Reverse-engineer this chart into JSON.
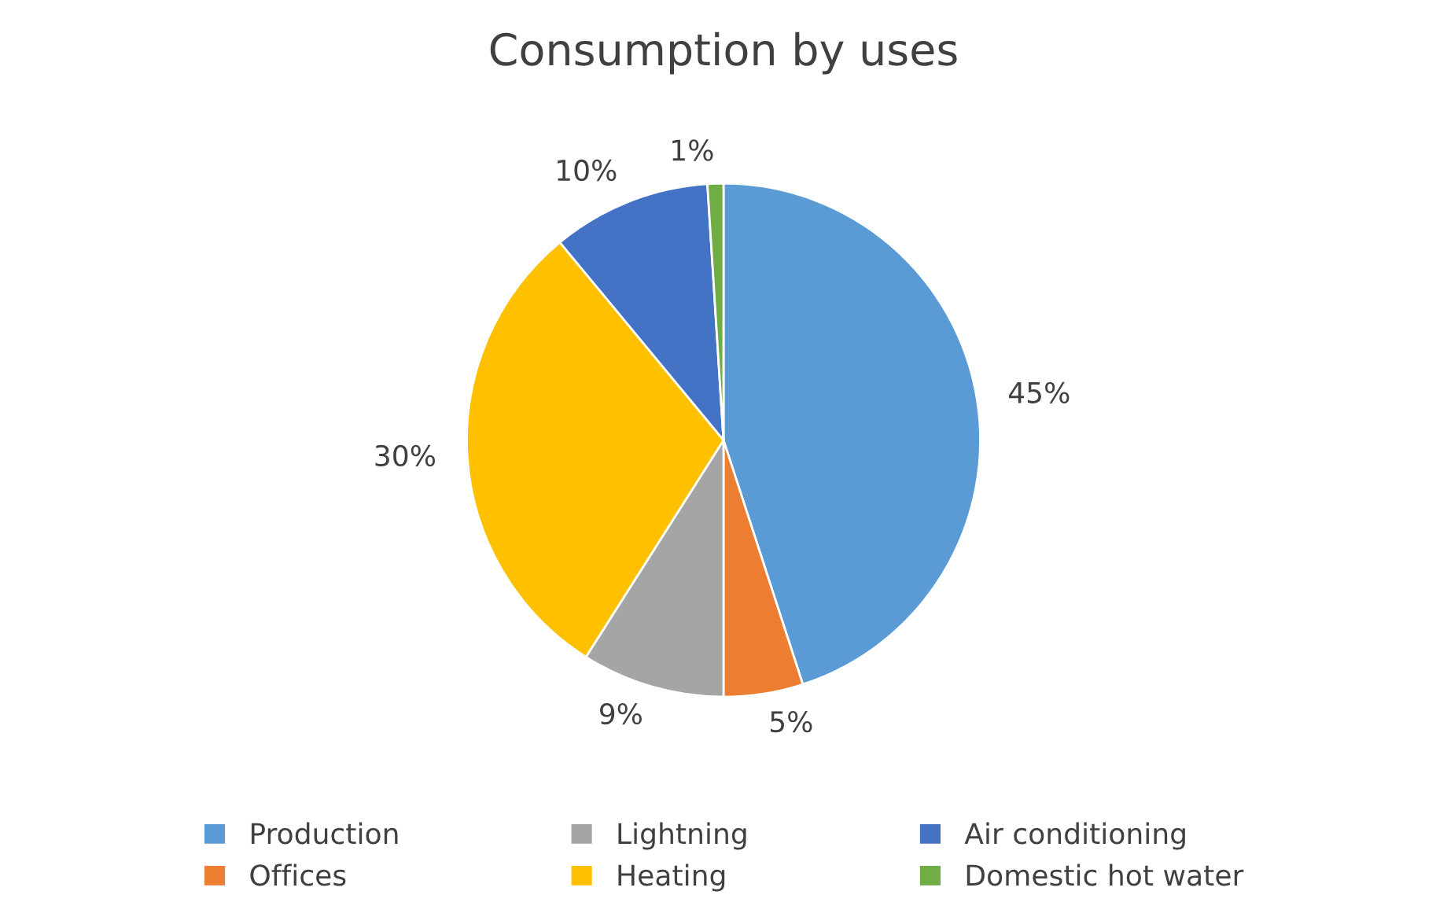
{
  "chart_data": {
    "type": "pie",
    "title": "Consumption by uses",
    "categories": [
      "Production",
      "Offices",
      "Lightning",
      "Heating",
      "Air conditioning",
      "Domestic hot water"
    ],
    "values": [
      45,
      5,
      9,
      30,
      10,
      1
    ],
    "value_labels": [
      "45%",
      "5%",
      "9%",
      "30%",
      "10%",
      "1%"
    ],
    "colors": [
      "#5b9bd5",
      "#ed7d31",
      "#a5a5a5",
      "#ffc000",
      "#4472c4",
      "#70ad47"
    ],
    "legend": "bottom"
  }
}
